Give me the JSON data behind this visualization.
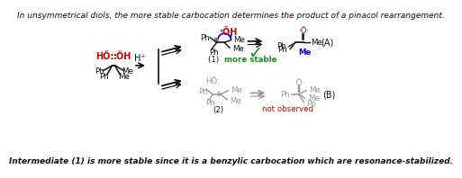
{
  "title_text": "In unsymmetrical diols, the more stable carbocation determines the product of a pinacol rearrangement.",
  "footer_text": "Intermediate (1) is more stable since it is a benzylic carbocation which are resonance-stabilized.",
  "red_color": "#cc0000",
  "green_color": "#228B22",
  "blue_color": "#0000dd",
  "gray_color": "#999999",
  "black": "#111111"
}
